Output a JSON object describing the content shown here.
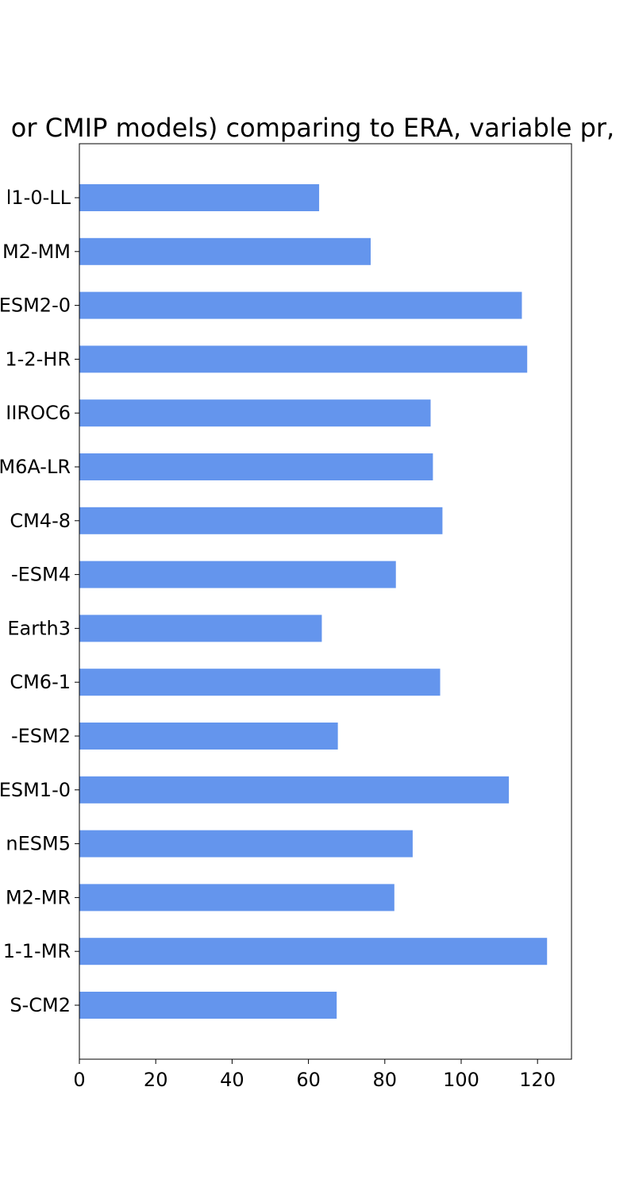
{
  "chart_data": {
    "type": "bar",
    "orientation": "horizontal",
    "title": "or CMIP models) comparing to ERA, variable pr,",
    "xlabel": "",
    "ylabel": "",
    "xlim": [
      0,
      128.9
    ],
    "x_ticks": [
      0,
      20,
      40,
      60,
      80,
      100,
      120
    ],
    "x_tick_labels": [
      "0",
      "20",
      "40",
      "60",
      "80",
      "100",
      "120"
    ],
    "grid": false,
    "bar_color": "#6495ED",
    "categories": [
      "l1-0-LL",
      "M2-MM",
      "ESM2-0",
      "1-2-HR",
      "IIROC6",
      "M6A-LR",
      "CM4-8",
      "-ESM4",
      "Earth3",
      "CM6-1",
      "-ESM2",
      "ESM1-0",
      "nESM5",
      "M2-MR",
      "1-1-MR",
      "S-CM2"
    ],
    "values": [
      62.8,
      76.3,
      115.9,
      117.3,
      92.0,
      92.6,
      95.1,
      82.9,
      63.5,
      94.5,
      67.7,
      112.5,
      87.3,
      82.5,
      122.5,
      67.4
    ]
  }
}
